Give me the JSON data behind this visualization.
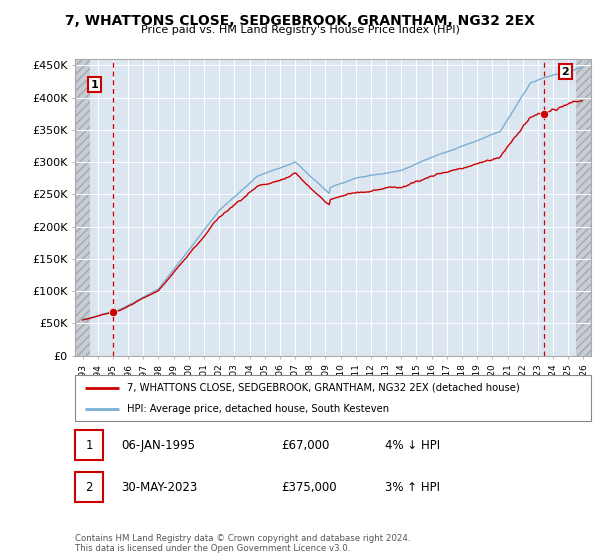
{
  "title1": "7, WHATTONS CLOSE, SEDGEBROOK, GRANTHAM, NG32 2EX",
  "title2": "Price paid vs. HM Land Registry's House Price Index (HPI)",
  "ylabel_ticks": [
    "£0",
    "£50K",
    "£100K",
    "£150K",
    "£200K",
    "£250K",
    "£300K",
    "£350K",
    "£400K",
    "£450K"
  ],
  "ylabel_values": [
    0,
    50000,
    100000,
    150000,
    200000,
    250000,
    300000,
    350000,
    400000,
    450000
  ],
  "ylim": [
    0,
    460000
  ],
  "xlim_start": 1992.5,
  "xlim_end": 2026.5,
  "data_xlim_start": 1993.5,
  "data_xlim_end": 2025.5,
  "purchase1_year": 1995.03,
  "purchase1_price": 67000,
  "purchase2_year": 2023.41,
  "purchase2_price": 375000,
  "marker_color": "#cc0000",
  "line_color_red": "#cc0000",
  "line_color_blue": "#7ab0d4",
  "annotation1_label": "1",
  "annotation2_label": "2",
  "legend_line1": "7, WHATTONS CLOSE, SEDGEBROOK, GRANTHAM, NG32 2EX (detached house)",
  "legend_line2": "HPI: Average price, detached house, South Kesteven",
  "table_row1": [
    "1",
    "06-JAN-1995",
    "£67,000",
    "4% ↓ HPI"
  ],
  "table_row2": [
    "2",
    "30-MAY-2023",
    "£375,000",
    "3% ↑ HPI"
  ],
  "footer": "Contains HM Land Registry data © Crown copyright and database right 2024.\nThis data is licensed under the Open Government Licence v3.0.",
  "plot_bg_color": "#dce6f1",
  "grid_color": "#ffffff",
  "hatch_bg_color": "#c8d0d8",
  "years_ticks": [
    1993,
    1994,
    1995,
    1996,
    1997,
    1998,
    1999,
    2000,
    2001,
    2002,
    2003,
    2004,
    2005,
    2006,
    2007,
    2008,
    2009,
    2010,
    2011,
    2012,
    2013,
    2014,
    2015,
    2016,
    2017,
    2018,
    2019,
    2020,
    2021,
    2022,
    2023,
    2024,
    2025,
    2026
  ]
}
